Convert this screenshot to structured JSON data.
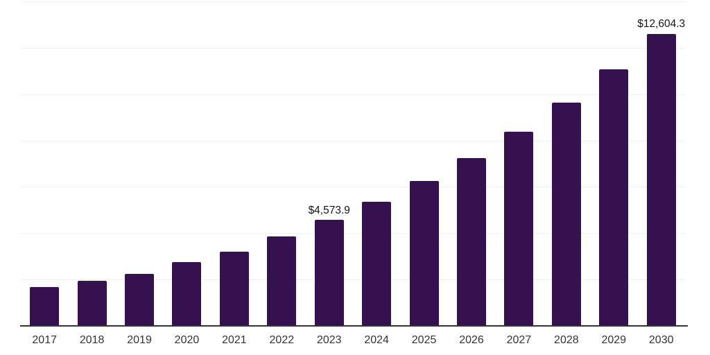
{
  "chart_data": {
    "type": "bar",
    "title": "",
    "xlabel": "",
    "ylabel": "",
    "categories": [
      "2017",
      "2018",
      "2019",
      "2020",
      "2021",
      "2022",
      "2023",
      "2024",
      "2025",
      "2026",
      "2027",
      "2028",
      "2029",
      "2030"
    ],
    "values": [
      1670,
      1940,
      2240,
      2750,
      3200,
      3860,
      4573.9,
      5360,
      6240,
      7240,
      8380,
      9630,
      11070,
      12604.3
    ],
    "value_labels": [
      "",
      "",
      "",
      "",
      "",
      "",
      "$4,573.9",
      "",
      "",
      "",
      "",
      "",
      "",
      "$12,604.3"
    ],
    "ylim": [
      0,
      14000
    ],
    "gridline_interval": 2000,
    "grid": "horizontal",
    "legend_position": "none",
    "y_axis_ticks_visible": false,
    "bar_color": "#351150",
    "colors": {
      "background": "#ffffff",
      "gridline": "#f0f0f2",
      "axis_line": "#333333",
      "tick_label": "#333333",
      "value_label": "#141414"
    }
  }
}
